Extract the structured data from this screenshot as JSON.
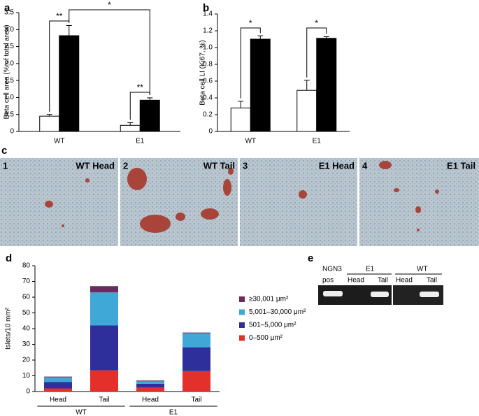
{
  "chart_data": [
    {
      "type": "bar",
      "panel": "a",
      "ylabel": "Beta cell area (% of total area)",
      "categories": [
        "WT",
        "E1"
      ],
      "series": [
        {
          "color": "#ffffff",
          "values": [
            0.45,
            0.18
          ],
          "errors": [
            0.05,
            0.08
          ]
        },
        {
          "color": "#000000",
          "values": [
            2.82,
            0.92
          ],
          "errors": [
            0.3,
            0.07
          ]
        }
      ],
      "annotations": [
        "**",
        "*",
        "**"
      ],
      "ylim": [
        0,
        3.5
      ],
      "yticks": [
        0,
        0.5,
        {
          "value": 1,
          "label": "1.0"
        },
        1.5,
        {
          "value": 2,
          "label": "2.0"
        },
        2.5,
        {
          "value": 3,
          "label": "3.0"
        },
        3.5
      ]
    },
    {
      "type": "bar",
      "panel": "b",
      "ylabel": "Beta cell LI (Ki67, %)",
      "categories": [
        "WT",
        "E1"
      ],
      "series": [
        {
          "color": "#ffffff",
          "values": [
            0.28,
            0.49
          ],
          "errors": [
            0.08,
            0.12
          ]
        },
        {
          "color": "#000000",
          "values": [
            1.1,
            1.11
          ],
          "errors": [
            0.04,
            0.02
          ]
        }
      ],
      "annotations": [
        "*",
        "*"
      ],
      "ylim": [
        0,
        1.4
      ],
      "yticks": [
        0,
        0.2,
        0.4,
        0.6,
        0.8,
        {
          "value": 1,
          "label": "1.0"
        },
        1.2,
        1.4
      ]
    },
    {
      "type": "stacked-bar",
      "panel": "d",
      "ylabel": "Islets/10 mm²",
      "categories": [
        "Head",
        "Tail",
        "Head",
        "Tail"
      ],
      "group_labels": [
        "WT",
        "E1"
      ],
      "series": [
        {
          "name": "0–500 μm²",
          "color": "#e3302b",
          "values": [
            2,
            13.5,
            2.5,
            13
          ]
        },
        {
          "name": "501–5,000 μm²",
          "color": "#2f2f9c",
          "values": [
            4,
            28.5,
            2.5,
            15
          ]
        },
        {
          "name": "5,001–30,000 μm²",
          "color": "#3fa8d6",
          "values": [
            3,
            21,
            1.5,
            9
          ]
        },
        {
          "name": "≥30,001 μm²",
          "color": "#6a2c5c",
          "values": [
            0.5,
            4,
            0.5,
            0.5
          ]
        }
      ],
      "ylim": [
        0,
        80
      ],
      "yticks": [
        0,
        10,
        20,
        30,
        40,
        50,
        60,
        70,
        80
      ]
    }
  ],
  "histology": {
    "panel": "c",
    "images": [
      {
        "number": "1",
        "label": "WT Head"
      },
      {
        "number": "2",
        "label": "WT Tail"
      },
      {
        "number": "3",
        "label": "E1 Head"
      },
      {
        "number": "4",
        "label": "E1 Tail"
      }
    ]
  },
  "gel": {
    "panel": "e",
    "control_label": [
      "NGN3",
      "pos"
    ],
    "groups": [
      {
        "name": "E1",
        "lanes": [
          "Head",
          "Tail"
        ]
      },
      {
        "name": "WT",
        "lanes": [
          "Head",
          "Tail"
        ]
      }
    ]
  }
}
